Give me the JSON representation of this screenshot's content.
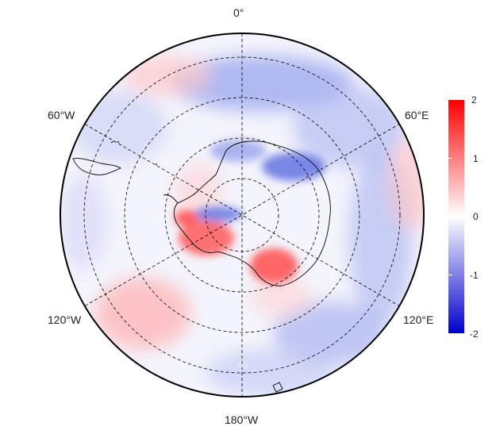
{
  "longitude_labels": {
    "north": "0°",
    "ne": "60°E",
    "se": "120°E",
    "south": "180°W",
    "sw": "120°W",
    "nw": "60°W"
  },
  "colorbar": {
    "ticks": [
      "2",
      "1",
      "0",
      "-1",
      "-2"
    ],
    "min": -2,
    "max": 2,
    "colors": {
      "high": "#ff0000",
      "mid": "#ffffff",
      "low": "#0000cc"
    }
  },
  "map": {
    "projection": "south-polar-stereographic",
    "graticule_rings": 4,
    "meridians_deg": [
      0,
      60,
      120,
      180,
      240,
      300
    ],
    "colors": {
      "frame": "#000000",
      "graticule": "#000000",
      "coast": "#000000"
    }
  }
}
